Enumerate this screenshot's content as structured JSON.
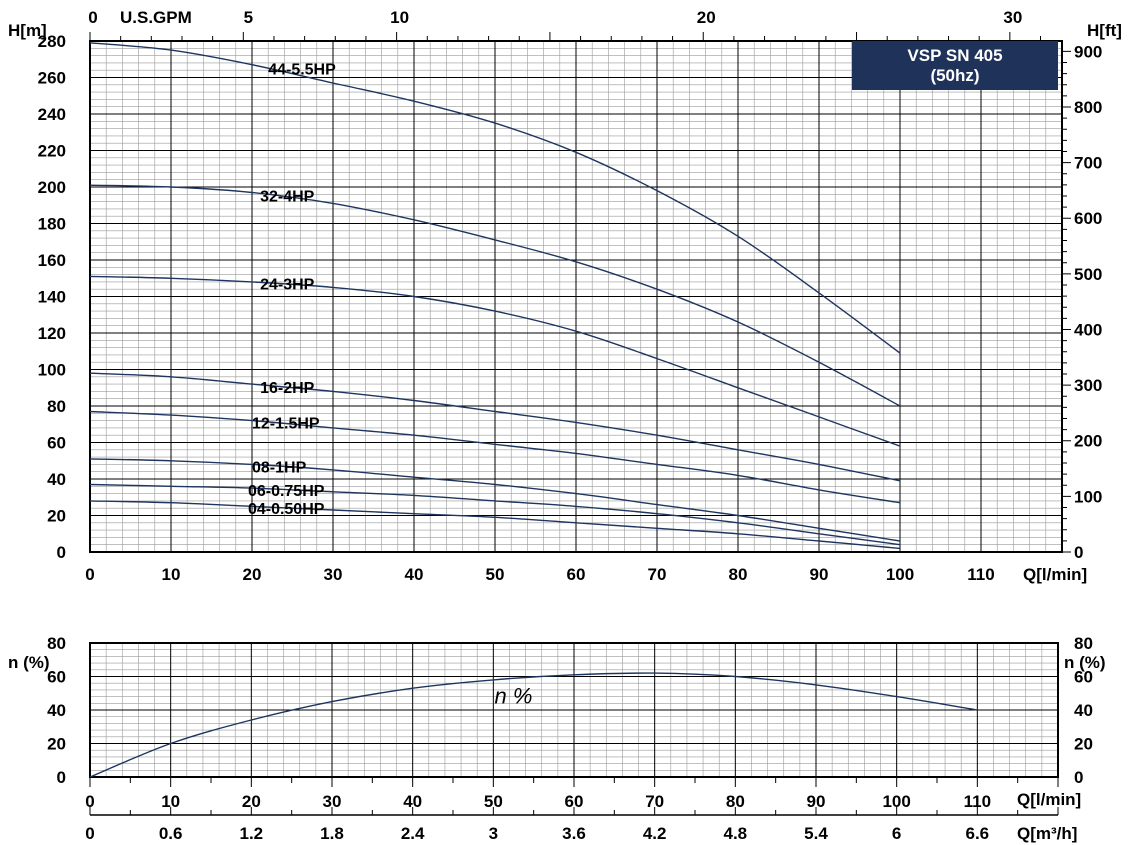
{
  "title": {
    "line1": "VSP SN 405",
    "line2": "(50hz)",
    "bg_color": "#1e325a",
    "text_color": "#ffffff"
  },
  "colors": {
    "curve": "#1e3560",
    "grid_major": "#000000",
    "grid_minor": "#9a9a9a"
  },
  "units": {
    "h_m": "H[m]",
    "h_ft": "H[ft]",
    "gpm": "U.S.GPM",
    "q_lmin": "Q[l/min]",
    "eta_left": "n (%)",
    "eta_right": "n (%)",
    "q_lmin_bottom": "Q[l/min]",
    "q_m3h": "Q[m³/h]"
  },
  "chart_data": [
    {
      "type": "line",
      "name": "head-curves",
      "xlim": [
        0,
        120
      ],
      "ylim": [
        0,
        280
      ],
      "grid": true,
      "x_ticks": [
        "0",
        "10",
        "20",
        "30",
        "40",
        "50",
        "60",
        "70",
        "80",
        "90",
        "100",
        "110"
      ],
      "y_ticks": [
        "0",
        "20",
        "40",
        "60",
        "80",
        "100",
        "120",
        "140",
        "160",
        "180",
        "200",
        "220",
        "240",
        "260",
        "280"
      ],
      "y2_ticks": [
        "0",
        "100",
        "200",
        "300",
        "400",
        "500",
        "600",
        "700",
        "800",
        "900"
      ],
      "top_ticks": [
        "0",
        "5",
        "10",
        "20",
        "30"
      ],
      "series": [
        {
          "name": "44-5.5HP",
          "x": [
            0,
            10,
            20,
            30,
            40,
            50,
            60,
            70,
            80,
            90,
            100
          ],
          "y": [
            279,
            275,
            267,
            257,
            247,
            235,
            219,
            198,
            173,
            142,
            109
          ]
        },
        {
          "name": "32-4HP",
          "x": [
            0,
            10,
            20,
            30,
            40,
            50,
            60,
            70,
            80,
            90,
            100
          ],
          "y": [
            201,
            200,
            197,
            191,
            182,
            171,
            159,
            144,
            126,
            104,
            80
          ]
        },
        {
          "name": "24-3HP",
          "x": [
            0,
            10,
            20,
            30,
            40,
            50,
            60,
            70,
            80,
            90,
            100
          ],
          "y": [
            151,
            150,
            148,
            145,
            140,
            132,
            121,
            106,
            90,
            74,
            58
          ]
        },
        {
          "name": "16-2HP",
          "x": [
            0,
            10,
            20,
            30,
            40,
            50,
            60,
            70,
            80,
            90,
            100
          ],
          "y": [
            98,
            96,
            92,
            88,
            83,
            77,
            71,
            64,
            56,
            48,
            39
          ]
        },
        {
          "name": "12-1.5HP",
          "x": [
            0,
            10,
            20,
            30,
            40,
            50,
            60,
            70,
            80,
            90,
            100
          ],
          "y": [
            77,
            75,
            72,
            68,
            64,
            59,
            54,
            48,
            42,
            34,
            27
          ]
        },
        {
          "name": "08-1HP",
          "x": [
            0,
            10,
            20,
            30,
            40,
            50,
            60,
            70,
            80,
            90,
            100
          ],
          "y": [
            51,
            50,
            48,
            45,
            41,
            37,
            32,
            26,
            20,
            13,
            6
          ]
        },
        {
          "name": "06-0.75HP",
          "x": [
            0,
            10,
            20,
            30,
            40,
            50,
            60,
            70,
            80,
            90,
            100
          ],
          "y": [
            37,
            36,
            35,
            33,
            31,
            28,
            25,
            21,
            16,
            10,
            4
          ]
        },
        {
          "name": "04-0.50HP",
          "x": [
            0,
            10,
            20,
            30,
            40,
            50,
            60,
            70,
            80,
            90,
            100
          ],
          "y": [
            28,
            27,
            25,
            23,
            21,
            19,
            16,
            13,
            10,
            6,
            2
          ]
        }
      ]
    },
    {
      "type": "line",
      "name": "efficiency-curve",
      "xlim": [
        0,
        120
      ],
      "ylim": [
        0,
        80
      ],
      "grid": true,
      "x_ticks": [
        "0",
        "10",
        "20",
        "30",
        "40",
        "50",
        "60",
        "70",
        "80",
        "90",
        "100",
        "110"
      ],
      "x2_ticks": [
        "0",
        "0.6",
        "1.2",
        "1.8",
        "2.4",
        "3",
        "3.6",
        "4.2",
        "4.8",
        "5.4",
        "6",
        "6.6"
      ],
      "y_ticks": [
        "0",
        "20",
        "40",
        "60",
        "80"
      ],
      "series": [
        {
          "name": "n %",
          "x": [
            0,
            10,
            20,
            30,
            40,
            50,
            60,
            70,
            80,
            90,
            100,
            110
          ],
          "y": [
            0,
            20,
            34,
            45,
            53,
            58,
            61,
            62,
            60,
            55,
            48,
            40
          ]
        }
      ]
    }
  ]
}
